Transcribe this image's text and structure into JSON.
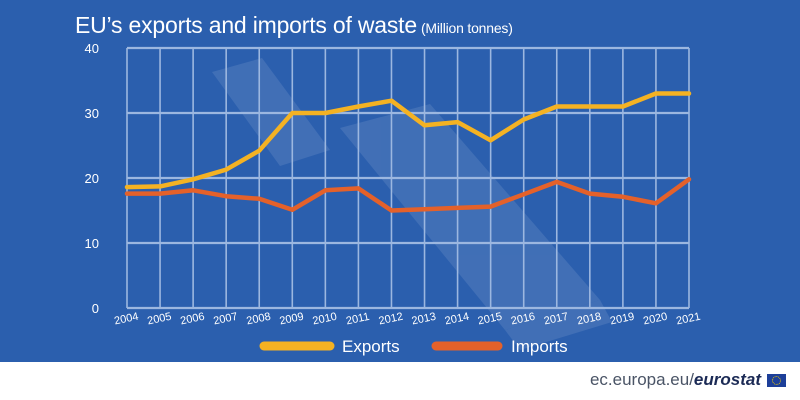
{
  "header": {
    "title": "EU’s exports and imports of waste",
    "subtitle": "(Million tonnes)"
  },
  "footer": {
    "site": "ec.europa.eu/",
    "brand": "eurostat"
  },
  "colors": {
    "background": "#2b5fae",
    "gridline": "#9cb7e0",
    "exports": "#f4b223",
    "imports": "#e4612a",
    "text": "#ffffff"
  },
  "chart_data": {
    "type": "line",
    "title": "EU’s exports and imports of waste",
    "subtitle": "(Million tonnes)",
    "xlabel": "",
    "ylabel": "",
    "ylim": [
      0,
      40
    ],
    "yticks": [
      0,
      10,
      20,
      30,
      40
    ],
    "grid": true,
    "legend_position": "bottom",
    "x": [
      "2004",
      "2005",
      "2006",
      "2007",
      "2008",
      "2009",
      "2010",
      "2011",
      "2012",
      "2013",
      "2014",
      "2015",
      "2016",
      "2017",
      "2018",
      "2019",
      "2020",
      "2021"
    ],
    "series": [
      {
        "name": "Exports",
        "color": "#f4b223",
        "values": [
          18.6,
          18.7,
          19.8,
          21.3,
          24.2,
          30.0,
          30.0,
          31.0,
          31.9,
          28.1,
          28.6,
          25.8,
          29.0,
          31.0,
          31.0,
          31.0,
          33.0,
          33.0
        ]
      },
      {
        "name": "Imports",
        "color": "#e4612a",
        "values": [
          17.6,
          17.6,
          18.1,
          17.2,
          16.8,
          15.1,
          18.1,
          18.4,
          15.0,
          15.2,
          15.4,
          15.6,
          17.5,
          19.4,
          17.6,
          17.1,
          16.1,
          19.8
        ]
      }
    ]
  }
}
